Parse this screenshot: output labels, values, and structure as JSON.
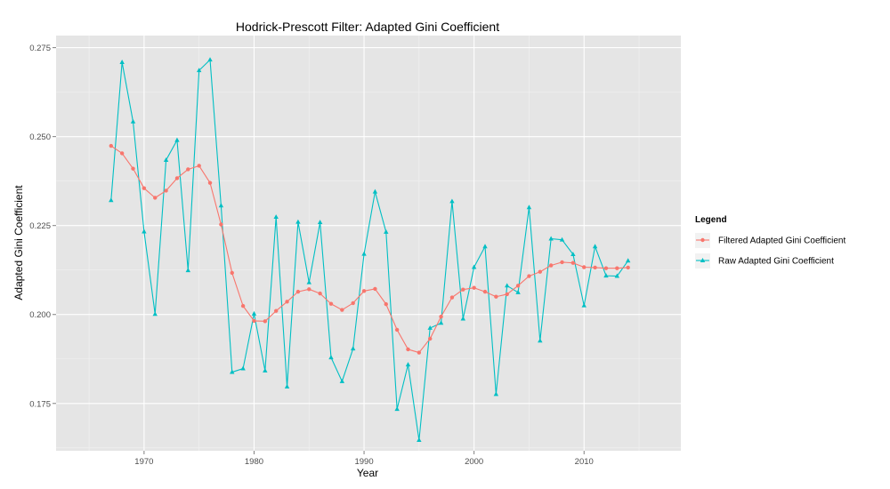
{
  "chart_data": {
    "type": "line",
    "title": "Hodrick-Prescott Filter: Adapted Gini Coefficient",
    "xlabel": "Year",
    "ylabel": "Adapted Gini Coefficient",
    "xlim": [
      1962,
      2018.8
    ],
    "ylim": [
      0.1617,
      0.2784
    ],
    "x_ticks": [
      1970,
      1980,
      1990,
      2000,
      2010
    ],
    "y_ticks": [
      0.175,
      0.2,
      0.225,
      0.25,
      0.275
    ],
    "y_tick_labels": [
      "0.175",
      "0.200",
      "0.225",
      "0.250",
      "0.275"
    ],
    "grid": true,
    "legend": {
      "title": "Legend",
      "position": "right"
    },
    "x": [
      1967,
      1968,
      1969,
      1970,
      1971,
      1972,
      1973,
      1974,
      1975,
      1976,
      1977,
      1978,
      1979,
      1980,
      1981,
      1982,
      1983,
      1984,
      1985,
      1986,
      1987,
      1988,
      1989,
      1990,
      1991,
      1992,
      1993,
      1994,
      1995,
      1996,
      1997,
      1998,
      1999,
      2000,
      2001,
      2002,
      2003,
      2004,
      2005,
      2006,
      2007,
      2008,
      2009,
      2010,
      2011,
      2012,
      2013,
      2014
    ],
    "series": [
      {
        "name": "Filtered Adapted Gini Coefficient",
        "color": "#F8766D",
        "marker": "circle",
        "values": [
          0.2474,
          0.2453,
          0.241,
          0.2355,
          0.2328,
          0.2348,
          0.2383,
          0.2408,
          0.2418,
          0.237,
          0.2253,
          0.2117,
          0.2024,
          0.1982,
          0.1981,
          0.201,
          0.2036,
          0.2064,
          0.2071,
          0.2059,
          0.203,
          0.2013,
          0.2032,
          0.2066,
          0.2072,
          0.2029,
          0.1957,
          0.1902,
          0.1893,
          0.1932,
          0.1994,
          0.2048,
          0.207,
          0.2075,
          0.2064,
          0.205,
          0.2057,
          0.2081,
          0.2108,
          0.212,
          0.2138,
          0.2147,
          0.2145,
          0.2133,
          0.2132,
          0.213,
          0.213,
          0.2132
        ]
      },
      {
        "name": "Raw Adapted Gini Coefficient",
        "color": "#00BFC4",
        "marker": "triangle",
        "values": [
          0.2321,
          0.2709,
          0.2542,
          0.2233,
          0.2001,
          0.2434,
          0.249,
          0.2124,
          0.2686,
          0.2716,
          0.2306,
          0.1838,
          0.1848,
          0.2002,
          0.1842,
          0.2274,
          0.1797,
          0.226,
          0.209,
          0.2259,
          0.1879,
          0.1812,
          0.1904,
          0.217,
          0.2345,
          0.2232,
          0.1734,
          0.1859,
          0.1647,
          0.1962,
          0.1976,
          0.2318,
          0.1988,
          0.2133,
          0.2191,
          0.1776,
          0.2081,
          0.2062,
          0.2301,
          0.1926,
          0.2213,
          0.221,
          0.2169,
          0.2025,
          0.2191,
          0.2109,
          0.2108,
          0.2151
        ]
      }
    ]
  }
}
